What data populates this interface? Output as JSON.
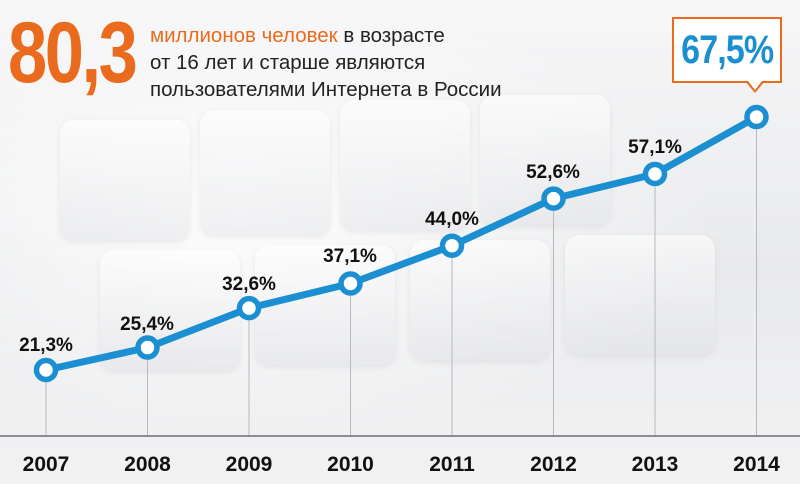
{
  "headline": {
    "big_number": "80,3",
    "accent_text": "миллионов человек",
    "text_line1_rest": " в возрасте",
    "text_line2": "от 16 лет и старше являются",
    "text_line3": "пользователями Интернета в России"
  },
  "colors": {
    "accent": "#ea6b1d",
    "line": "#1b8fd1",
    "text": "#111111"
  },
  "chart_data": {
    "type": "line",
    "title": "",
    "xlabel": "",
    "ylabel": "",
    "ylim": [
      15,
      70
    ],
    "grid": false,
    "categories": [
      "2007",
      "2008",
      "2009",
      "2010",
      "2011",
      "2012",
      "2013",
      "2014"
    ],
    "series": [
      {
        "values": [
          21.3,
          25.4,
          32.6,
          37.1,
          44.0,
          52.6,
          57.1,
          67.5
        ]
      }
    ],
    "data_labels": [
      "21,3%",
      "25,4%",
      "32,6%",
      "37,1%",
      "44,0%",
      "52,6%",
      "57,1%",
      "67,5%"
    ],
    "highlight": {
      "index": 7,
      "label": "67,5%"
    }
  }
}
